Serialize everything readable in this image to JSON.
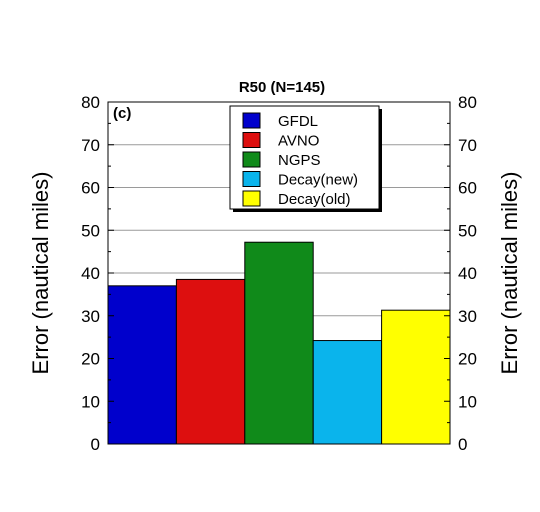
{
  "chart_data": {
    "type": "bar",
    "title": "R50 (N=145)",
    "panel_label": "(c)",
    "ylabel_left": "Error (nautical miles)",
    "ylabel_right": "Error (nautical miles)",
    "ylim": [
      0,
      80
    ],
    "yticks": [
      0,
      10,
      20,
      30,
      40,
      50,
      60,
      70,
      80
    ],
    "grid": true,
    "legend_position": "top-center",
    "series": [
      {
        "name": "GFDL",
        "value": 37,
        "color": "#0000cc"
      },
      {
        "name": "AVNO",
        "value": 38.5,
        "color": "#dd0f0f"
      },
      {
        "name": "NGPS",
        "value": 47.2,
        "color": "#108a1a"
      },
      {
        "name": "Decay(new)",
        "value": 24.2,
        "color": "#0ab4ec"
      },
      {
        "name": "Decay(old)",
        "value": 31.3,
        "color": "#ffff00"
      }
    ]
  }
}
